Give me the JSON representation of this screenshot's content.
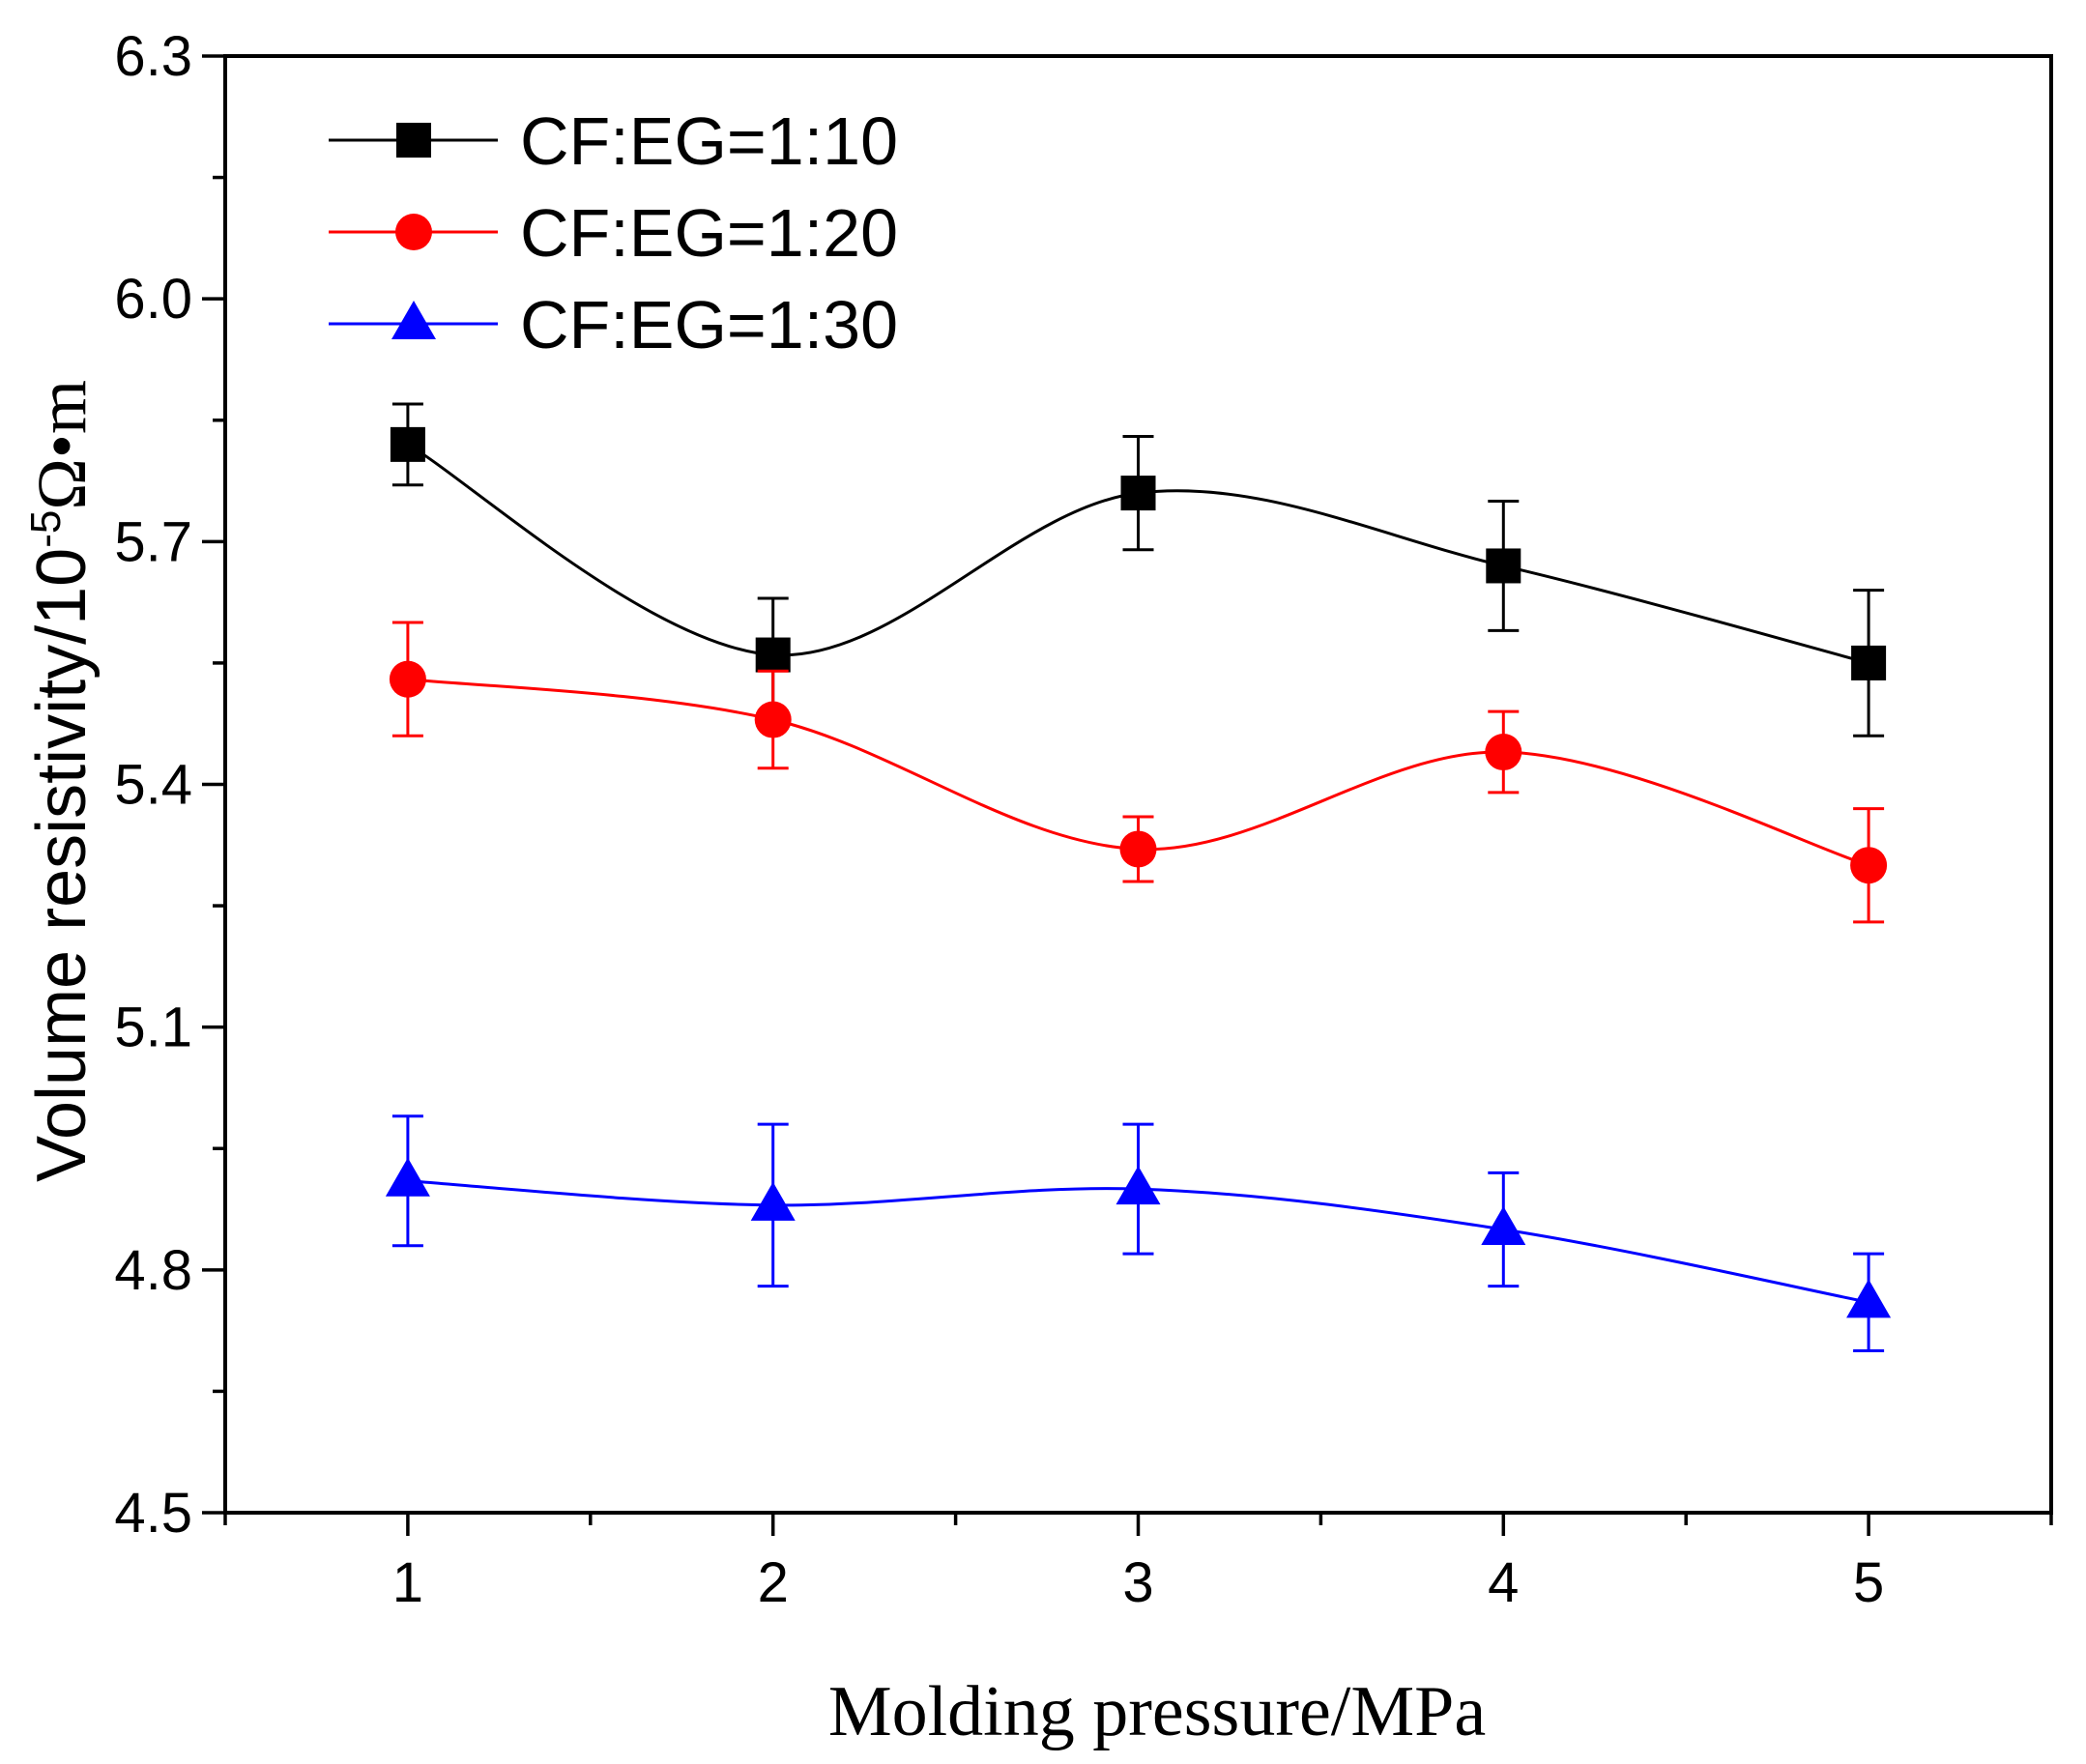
{
  "chart_data": {
    "type": "line",
    "title": "",
    "xlabel": "Molding pressure/MPa",
    "ylabel": "Volume resistivity/10",
    "ylabel_superscript": "-5",
    "ylabel_unit": "Ω•m",
    "x": [
      1,
      2,
      3,
      4,
      5
    ],
    "x_ticks": [
      "1",
      "2",
      "3",
      "4",
      "5"
    ],
    "y_ticks": [
      "4.5",
      "4.8",
      "5.1",
      "5.4",
      "5.7",
      "6.0",
      "6.3"
    ],
    "xlim": [
      0.5,
      5.5
    ],
    "ylim": [
      4.5,
      6.3
    ],
    "grid": false,
    "legend_position": "top-left",
    "series": [
      {
        "name": "CF:EG=1:10",
        "color": "#000000",
        "marker": "square",
        "values": [
          5.82,
          5.56,
          5.76,
          5.67,
          5.55
        ],
        "err_low": [
          5.77,
          5.49,
          5.69,
          5.59,
          5.46
        ],
        "err_high": [
          5.87,
          5.63,
          5.83,
          5.75,
          5.64
        ]
      },
      {
        "name": "CF:EG=1:20",
        "color": "#ff0000",
        "marker": "circle",
        "values": [
          5.53,
          5.48,
          5.32,
          5.44,
          5.3
        ],
        "err_low": [
          5.46,
          5.42,
          5.28,
          5.39,
          5.23
        ],
        "err_high": [
          5.6,
          5.54,
          5.36,
          5.49,
          5.37
        ]
      },
      {
        "name": "CF:EG=1:30",
        "color": "#0000ff",
        "marker": "triangle",
        "values": [
          4.91,
          4.88,
          4.9,
          4.85,
          4.76
        ],
        "err_low": [
          4.83,
          4.78,
          4.82,
          4.78,
          4.7
        ],
        "err_high": [
          4.99,
          4.98,
          4.98,
          4.92,
          4.82
        ]
      }
    ]
  }
}
